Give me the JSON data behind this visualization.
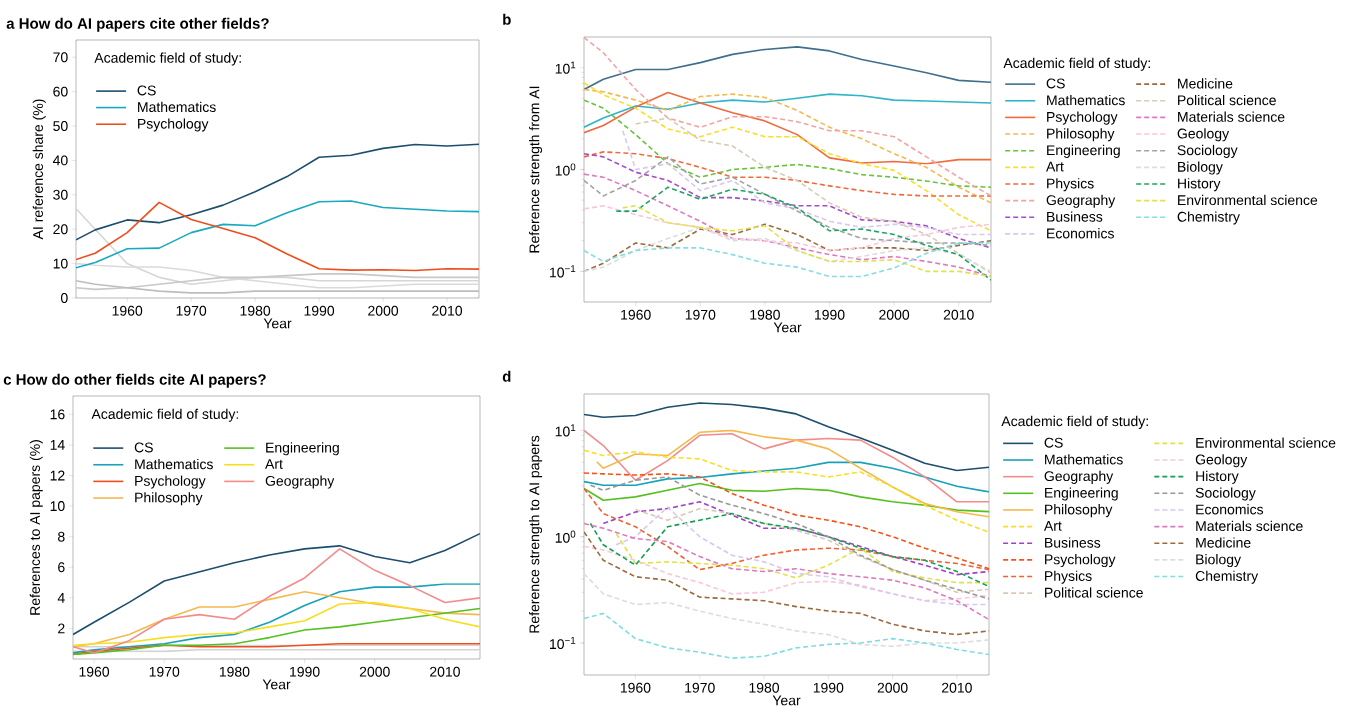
{
  "chart_data": [
    {
      "type": "line",
      "title": "a How do AI papers cite other fields?",
      "xlabel": "Year",
      "ylabel": "AI reference share (%)",
      "legend_title": "Academic field of study:",
      "legend": "top left",
      "x": [
        1952,
        1955,
        1960,
        1965,
        1970,
        1975,
        1980,
        1985,
        1990,
        1995,
        2000,
        2005,
        2010,
        2015
      ],
      "xlim": [
        1952,
        2015
      ],
      "xticks": [
        1960,
        1970,
        1980,
        1990,
        2000,
        2010
      ],
      "ylim": [
        0,
        75
      ],
      "yticks": [
        0,
        10,
        20,
        30,
        40,
        50,
        60,
        70
      ],
      "series": [
        {
          "color": "#d6d6d6",
          "line_style": "solid",
          "values": [
            26,
            20,
            10,
            6,
            4,
            5,
            6,
            6,
            5,
            5,
            5,
            5,
            5,
            5
          ]
        },
        {
          "color": "#dadada",
          "line_style": "solid",
          "values": [
            10,
            9.5,
            9,
            9,
            8,
            6,
            5,
            4,
            3,
            3,
            3.5,
            4,
            4,
            4
          ]
        },
        {
          "color": "#c8c8c8",
          "line_style": "solid",
          "values": [
            3,
            2.5,
            3,
            4,
            5,
            6,
            6,
            6.5,
            7,
            7,
            6.5,
            6,
            6,
            6
          ]
        },
        {
          "color": "#bdbdbd",
          "line_style": "solid",
          "values": [
            5,
            4,
            3,
            2,
            1.5,
            1.5,
            2,
            2,
            2,
            2,
            2,
            2,
            2,
            2
          ]
        },
        {
          "name": "CS",
          "color": "#1c4e6e",
          "line_style": "solid",
          "values": [
            16.9,
            19.8,
            22.7,
            21.9,
            24.2,
            27,
            30.9,
            35.3,
            40.9,
            41.5,
            43.5,
            44.6,
            44.2,
            44.7
          ]
        },
        {
          "name": "Mathematics",
          "color": "#17a9c0",
          "line_style": "solid",
          "values": [
            8.8,
            10.3,
            14.3,
            14.5,
            19,
            21.4,
            21,
            24.8,
            28,
            28.2,
            26.3,
            25.8,
            25.3,
            25.1
          ]
        },
        {
          "name": "Psychology",
          "color": "#ee4e1c",
          "line_style": "solid",
          "values": [
            11.2,
            13,
            19,
            27.8,
            22.8,
            20.2,
            17.5,
            12.8,
            8.5,
            8.1,
            8.2,
            8,
            8.5,
            8.4
          ]
        }
      ]
    },
    {
      "type": "line",
      "title": "b",
      "xlabel": "Year",
      "ylabel": "Reference strength from AI",
      "legend_title": "Academic field of study:",
      "legend": "right",
      "log": "y",
      "x": [
        1952,
        1955,
        1960,
        1965,
        1970,
        1975,
        1980,
        1985,
        1990,
        1995,
        2000,
        2005,
        2010,
        2015
      ],
      "xlim": [
        1952,
        2015
      ],
      "xticks": [
        1960,
        1970,
        1980,
        1990,
        2000,
        2010
      ],
      "ylim": [
        0.05,
        20
      ],
      "yticks": [
        {
          "value": 0.1,
          "label": "10$^{−1}$"
        },
        {
          "value": 1,
          "label": "10$^{0}$"
        },
        {
          "value": 10,
          "label": "10$^{1}$"
        }
      ],
      "series": [
        {
          "name": "CS",
          "color": "#3f6f8c",
          "line_style": "solid",
          "values": [
            6.1,
            7.7,
            9.6,
            9.6,
            11.2,
            13.5,
            15.1,
            16,
            14.6,
            12,
            10.4,
            8.9,
            7.5,
            7.2
          ]
        },
        {
          "name": "Mathematics",
          "color": "#2fb5c8",
          "line_style": "solid",
          "values": [
            2.6,
            3.2,
            4.2,
            3.9,
            4.5,
            4.8,
            4.6,
            5,
            5.5,
            5.3,
            4.8,
            4.7,
            4.6,
            4.5
          ]
        },
        {
          "name": "Psychology",
          "color": "#ef6a3c",
          "line_style": "solid",
          "values": [
            2.3,
            2.7,
            4.1,
            5.7,
            4.5,
            3.6,
            3,
            2.2,
            1.3,
            1.16,
            1.2,
            1.14,
            1.25,
            1.25
          ]
        },
        {
          "name": "Philosophy",
          "color": "#f5b94e",
          "line_style": "dashed",
          "values": [
            6.1,
            5.8,
            4.8,
            3.8,
            5.2,
            5.5,
            5.1,
            3.8,
            2.6,
            2,
            1.43,
            1.05,
            0.67,
            0.47
          ]
        },
        {
          "name": "Engineering",
          "color": "#66c43a",
          "line_style": "dashed",
          "values": [
            4.8,
            4,
            2.2,
            1.14,
            0.84,
            1,
            1.05,
            1.12,
            1.02,
            0.89,
            0.84,
            0.77,
            0.69,
            0.67
          ]
        },
        {
          "name": "Art",
          "color": "#f7df2a",
          "line_style": "dashed",
          "values": [
            7.1,
            5.4,
            4,
            2.5,
            2.1,
            2.6,
            2.1,
            2.1,
            1.43,
            1.14,
            0.98,
            0.62,
            0.36,
            0.25
          ]
        },
        {
          "name": "Physics",
          "color": "#f26a3b",
          "line_style": "dashed",
          "values": [
            1.33,
            1.49,
            1.43,
            1.28,
            1.05,
            0.84,
            0.84,
            0.78,
            0.69,
            0.62,
            0.57,
            0.55,
            0.55,
            0.55
          ]
        },
        {
          "name": "Geography",
          "color": "#f4a3a3",
          "line_style": "dashed",
          "values": [
            19.8,
            14,
            6.1,
            3.2,
            2.6,
            3.3,
            3.3,
            2.95,
            2.4,
            2.4,
            2.1,
            1.33,
            0.84,
            0.55
          ]
        },
        {
          "name": "Business",
          "color": "#a84bc9",
          "line_style": "dashed",
          "values": [
            1.43,
            1.33,
            0.94,
            0.78,
            0.53,
            0.53,
            0.49,
            0.44,
            0.44,
            0.32,
            0.31,
            0.28,
            0.21,
            0.17
          ]
        },
        {
          "name": "Economics",
          "color": "#d9c7f0",
          "line_style": "dashed",
          "x": [
            1958,
            1960,
            1965,
            1970,
            1975,
            1980,
            1985,
            1990,
            1995,
            2000,
            2005,
            2010,
            2015
          ],
          "values": [
            2.4,
            1.0,
            1.14,
            0.62,
            0.78,
            0.47,
            0.41,
            0.31,
            0.27,
            0.29,
            0.27,
            0.23,
            0.23
          ]
        },
        {
          "name": "Medicine",
          "color": "#9c6b3c",
          "line_style": "dashed",
          "values": [
            0.1,
            0.12,
            0.19,
            0.17,
            0.26,
            0.23,
            0.29,
            0.23,
            0.16,
            0.17,
            0.17,
            0.16,
            0.18,
            0.2
          ]
        },
        {
          "name": "Political science",
          "color": "#d8cbb6",
          "line_style": "dashed",
          "x": [
            1960,
            1965,
            1970,
            1975,
            1980,
            1985,
            1990,
            1995,
            2000,
            2005,
            2010,
            2015
          ],
          "values": [
            2.8,
            3.2,
            1.94,
            1.7,
            1.05,
            0.78,
            0.47,
            0.34,
            0.31,
            0.23,
            0.15,
            0.096
          ]
        },
        {
          "name": "Materials science",
          "color": "#e07ac0",
          "line_style": "dashed",
          "values": [
            0.9,
            0.84,
            0.62,
            0.44,
            0.31,
            0.21,
            0.2,
            0.17,
            0.146,
            0.13,
            0.14,
            0.125,
            0.11,
            0.089
          ]
        },
        {
          "name": "Geology",
          "color": "#f9c6dc",
          "line_style": "dashed",
          "values": [
            0.41,
            0.44,
            0.36,
            0.3,
            0.27,
            0.21,
            0.2,
            0.19,
            0.16,
            0.17,
            0.21,
            0.23,
            0.27,
            0.29
          ]
        },
        {
          "name": "Sociology",
          "color": "#a3a3a3",
          "line_style": "dashed",
          "values": [
            0.78,
            0.55,
            0.78,
            1.33,
            0.72,
            0.84,
            0.57,
            0.39,
            0.27,
            0.21,
            0.2,
            0.19,
            0.19,
            0.18
          ]
        },
        {
          "name": "Biology",
          "color": "#dddddd",
          "line_style": "dashed",
          "values": [
            0.1,
            0.11,
            0.16,
            0.21,
            0.27,
            0.2,
            0.21,
            0.16,
            0.125,
            0.14,
            0.16,
            0.17,
            0.146,
            0.1
          ]
        },
        {
          "name": "History",
          "color": "#1fa463",
          "line_style": "dashed",
          "x": [
            1957,
            1960,
            1965,
            1970,
            1975,
            1980,
            1985,
            1990,
            1995,
            2000,
            2005,
            2010,
            2015
          ],
          "values": [
            0.39,
            0.39,
            0.67,
            0.51,
            0.64,
            0.57,
            0.42,
            0.25,
            0.26,
            0.23,
            0.18,
            0.146,
            0.082
          ]
        },
        {
          "name": "Environmental science",
          "color": "#dfe34a",
          "line_style": "dashed",
          "x": [
            1958,
            1960,
            1965,
            1970,
            1975,
            1980,
            1985,
            1990,
            1995,
            2000,
            2005,
            2010,
            2015
          ],
          "values": [
            0.42,
            0.44,
            0.3,
            0.27,
            0.25,
            0.28,
            0.16,
            0.125,
            0.125,
            0.13,
            0.1,
            0.1,
            0.089
          ]
        },
        {
          "name": "Chemistry",
          "color": "#86dde2",
          "line_style": "dashed",
          "values": [
            0.16,
            0.125,
            0.16,
            0.17,
            0.17,
            0.146,
            0.12,
            0.11,
            0.089,
            0.089,
            0.108,
            0.15,
            0.19,
            0.19
          ]
        }
      ]
    },
    {
      "type": "line",
      "title": "c How do other fields cite AI papers?",
      "xlabel": "Year",
      "ylabel": "References to AI papers (%)",
      "legend_title": "Academic field of study:",
      "legend": "top left",
      "x": [
        1957,
        1960,
        1965,
        1970,
        1975,
        1980,
        1985,
        1990,
        1995,
        2000,
        2005,
        2010,
        2015
      ],
      "xlim": [
        1957,
        2015
      ],
      "xticks": [
        1960,
        1970,
        1980,
        1990,
        2000,
        2010
      ],
      "ylim": [
        0,
        17.2
      ],
      "yticks": [
        2,
        4,
        6,
        8,
        10,
        12,
        14,
        16
      ],
      "series": [
        {
          "color": "#d3d3d3",
          "line_style": "solid",
          "values": [
            0.8,
            0.8,
            0.8,
            0.9,
            0.9,
            0.9,
            0.9,
            0.9,
            0.9,
            0.9,
            0.9,
            0.9,
            0.9
          ]
        },
        {
          "color": "#d3d3d3",
          "line_style": "solid",
          "values": [
            0.5,
            0.5,
            0.5,
            0.5,
            0.6,
            0.6,
            0.6,
            0.6,
            0.6,
            0.6,
            0.6,
            0.6,
            0.6
          ]
        },
        {
          "name": "CS",
          "color": "#1c4e6e",
          "line_style": "solid",
          "values": [
            1.6,
            2.4,
            3.7,
            5.1,
            5.7,
            6.3,
            6.8,
            7.2,
            7.4,
            6.7,
            6.3,
            7.1,
            8.2
          ]
        },
        {
          "name": "Mathematics",
          "color": "#17a2b8",
          "line_style": "solid",
          "values": [
            0.4,
            0.6,
            0.8,
            1.0,
            1.4,
            1.6,
            2.4,
            3.5,
            4.4,
            4.7,
            4.7,
            4.9,
            4.9
          ]
        },
        {
          "name": "Psychology",
          "color": "#ee4e1c",
          "line_style": "solid",
          "values": [
            0.3,
            0.5,
            0.7,
            0.9,
            0.8,
            0.8,
            0.8,
            0.9,
            1.0,
            1.0,
            1.0,
            1.0,
            1.0
          ]
        },
        {
          "name": "Philosophy",
          "color": "#f5b94e",
          "line_style": "solid",
          "values": [
            0.8,
            1.0,
            1.6,
            2.6,
            3.4,
            3.4,
            3.9,
            4.4,
            4.0,
            3.6,
            3.3,
            3.0,
            2.9
          ]
        },
        {
          "name": "Engineering",
          "color": "#55c01e",
          "line_style": "solid",
          "values": [
            0.3,
            0.4,
            0.6,
            0.9,
            0.9,
            1.0,
            1.4,
            1.9,
            2.1,
            2.4,
            2.7,
            3.0,
            3.3
          ]
        },
        {
          "name": "Art",
          "color": "#f7df20",
          "line_style": "solid",
          "values": [
            0.9,
            1.0,
            1.1,
            1.4,
            1.6,
            1.7,
            2.1,
            2.5,
            3.6,
            3.7,
            3.3,
            2.6,
            2.1
          ]
        },
        {
          "name": "Geography",
          "color": "#f38b8b",
          "line_style": "solid",
          "values": [
            0.8,
            0.4,
            1.2,
            2.6,
            2.9,
            2.6,
            4.1,
            5.3,
            7.2,
            5.8,
            4.8,
            3.7,
            4.0
          ]
        }
      ]
    },
    {
      "type": "line",
      "title": "d",
      "xlabel": "Year",
      "ylabel": "Reference strength to AI papers",
      "legend_title": "Academic field of study:",
      "legend": "right",
      "log": "y",
      "x": [
        1952,
        1955,
        1960,
        1965,
        1970,
        1975,
        1980,
        1985,
        1990,
        1995,
        2000,
        2005,
        2010,
        2015
      ],
      "xlim": [
        1952,
        2015
      ],
      "xticks": [
        1960,
        1970,
        1980,
        1990,
        2000,
        2010
      ],
      "ylim": [
        0.05,
        22
      ],
      "yticks": [
        {
          "value": 0.1,
          "label": "10$^{−1}$"
        },
        {
          "value": 1,
          "label": "10$^{0}$"
        },
        {
          "value": 10,
          "label": "10$^{1}$"
        }
      ],
      "series": [
        {
          "name": "CS",
          "color": "#1c4e6e",
          "line_style": "solid",
          "values": [
            14.1,
            13.3,
            13.8,
            16.5,
            18.1,
            17.5,
            16.2,
            14.3,
            10.8,
            8.5,
            6.5,
            4.9,
            4.2,
            4.5
          ]
        },
        {
          "name": "Mathematics",
          "color": "#17a2b8",
          "line_style": "solid",
          "values": [
            3.3,
            3.05,
            3.05,
            3.5,
            3.6,
            3.9,
            4.15,
            4.4,
            5.0,
            5.0,
            4.4,
            3.65,
            2.98,
            2.64
          ]
        },
        {
          "name": "Geography",
          "color": "#f38b8b",
          "line_style": "solid",
          "values": [
            10,
            7.2,
            3.4,
            5.2,
            9,
            9.3,
            6.7,
            8.1,
            8.4,
            8.1,
            5.6,
            3.65,
            2.13,
            2.13
          ]
        },
        {
          "name": "Engineering",
          "color": "#55c01e",
          "line_style": "solid",
          "values": [
            2.84,
            2.2,
            2.37,
            2.73,
            3.16,
            2.73,
            2.68,
            2.84,
            2.73,
            2.37,
            2.13,
            1.98,
            1.78,
            1.72
          ]
        },
        {
          "name": "Philosophy",
          "color": "#f5b94e",
          "line_style": "solid",
          "x": [
            1954,
            1955,
            1960,
            1965,
            1970,
            1975,
            1980,
            1985,
            1990,
            1995,
            2000,
            2005,
            2010,
            2015
          ],
          "values": [
            5.05,
            4.4,
            6.0,
            5.8,
            9.6,
            10,
            8.7,
            8.1,
            6.7,
            4.4,
            2.94,
            2.05,
            1.72,
            1.54
          ]
        },
        {
          "name": "Art",
          "color": "#f7e020",
          "line_style": "dashed",
          "values": [
            6.5,
            5.8,
            6.3,
            5.6,
            5.4,
            4.2,
            4.07,
            4.07,
            3.65,
            4.07,
            2.94,
            1.98,
            1.43,
            1.1
          ]
        },
        {
          "name": "Business",
          "color": "#a040c8",
          "line_style": "dashed",
          "x": [
            1955,
            1960,
            1965,
            1970,
            1975,
            1980,
            1985,
            1990,
            1995,
            2000,
            2005,
            2010,
            2015
          ],
          "values": [
            1.33,
            1.71,
            1.84,
            2.13,
            1.6,
            1.2,
            1.2,
            1.0,
            0.81,
            0.65,
            0.54,
            0.44,
            0.47
          ]
        },
        {
          "name": "Psychology",
          "color": "#f5531a",
          "line_style": "dashed",
          "values": [
            3.98,
            3.9,
            3.8,
            3.9,
            3.65,
            2.55,
            1.98,
            1.6,
            1.43,
            1.24,
            1.0,
            0.78,
            0.63,
            0.5
          ]
        },
        {
          "name": "Physics",
          "color": "#f06030",
          "line_style": "dashed",
          "values": [
            2.84,
            1.65,
            1.24,
            0.81,
            0.49,
            0.56,
            0.67,
            0.75,
            0.78,
            0.75,
            0.65,
            0.6,
            0.56,
            0.49
          ]
        },
        {
          "name": "Political science",
          "color": "#d8cbb6",
          "line_style": "dashed",
          "x": [
            1960,
            1965,
            1970,
            1975,
            1980,
            1985,
            1990,
            1995,
            2000,
            2005,
            2010,
            2015
          ],
          "values": [
            1.8,
            1.43,
            1.84,
            1.65,
            1.33,
            1.15,
            0.93,
            0.65,
            0.49,
            0.39,
            0.3,
            0.32
          ]
        },
        {
          "name": "Environmental science",
          "color": "#dfe34a",
          "line_style": "dashed",
          "x": [
            1957,
            1960,
            1965,
            1970,
            1975,
            1980,
            1985,
            1990,
            1995,
            2000,
            2005,
            2010,
            2015
          ],
          "values": [
            1.07,
            0.56,
            0.58,
            0.56,
            0.54,
            0.5,
            0.41,
            0.54,
            0.78,
            0.47,
            0.41,
            0.37,
            0.37
          ]
        },
        {
          "name": "Geology",
          "color": "#f9c6dc",
          "line_style": "dashed",
          "values": [
            0.81,
            0.75,
            0.6,
            0.45,
            0.37,
            0.29,
            0.3,
            0.37,
            0.38,
            0.35,
            0.29,
            0.25,
            0.26,
            0.28
          ]
        },
        {
          "name": "History",
          "color": "#15a050",
          "line_style": "dashed",
          "x": [
            1953,
            1955,
            1960,
            1965,
            1970,
            1975,
            1980,
            1985,
            1990,
            1995,
            2000,
            2005,
            2010,
            2015
          ],
          "values": [
            1.33,
            0.84,
            0.54,
            1.24,
            1.43,
            1.65,
            1.33,
            1.2,
            1.0,
            0.78,
            0.65,
            0.6,
            0.47,
            0.34
          ]
        },
        {
          "name": "Sociology",
          "color": "#999999",
          "line_style": "dashed",
          "x": [
            1953,
            1955,
            1960,
            1965,
            1970,
            1975,
            1980,
            1985,
            1990,
            1995,
            2000,
            2005,
            2010,
            2015
          ],
          "values": [
            3.05,
            2.73,
            3.4,
            3.65,
            2.46,
            1.98,
            1.65,
            1.33,
            1.0,
            0.67,
            0.49,
            0.39,
            0.32,
            0.26
          ]
        },
        {
          "name": "Economics",
          "color": "#d9c7f0",
          "line_style": "dashed",
          "x": [
            1957,
            1960,
            1965,
            1970,
            1975,
            1980,
            1985,
            1990,
            1995,
            2000,
            2005,
            2010,
            2015
          ],
          "values": [
            0.84,
            1.0,
            1.9,
            1.0,
            0.67,
            0.58,
            0.45,
            0.42,
            0.34,
            0.29,
            0.25,
            0.23,
            0.23
          ]
        },
        {
          "name": "Materials science",
          "color": "#e07ac0",
          "line_style": "dashed",
          "values": [
            1.33,
            1.2,
            0.96,
            0.9,
            0.65,
            0.5,
            0.47,
            0.5,
            0.45,
            0.42,
            0.39,
            0.33,
            0.25,
            0.166
          ]
        },
        {
          "name": "Medicine",
          "color": "#9c6b3c",
          "line_style": "dashed",
          "values": [
            1.11,
            0.6,
            0.42,
            0.39,
            0.27,
            0.26,
            0.25,
            0.22,
            0.2,
            0.19,
            0.15,
            0.13,
            0.12,
            0.13
          ]
        },
        {
          "name": "Biology",
          "color": "#dddddd",
          "line_style": "dashed",
          "values": [
            0.45,
            0.29,
            0.23,
            0.24,
            0.2,
            0.17,
            0.15,
            0.13,
            0.12,
            0.097,
            0.093,
            0.1,
            0.1,
            0.107
          ]
        },
        {
          "name": "Chemistry",
          "color": "#7edde2",
          "line_style": "dashed",
          "values": [
            0.17,
            0.19,
            0.11,
            0.09,
            0.082,
            0.072,
            0.075,
            0.09,
            0.097,
            0.1,
            0.11,
            0.1,
            0.087,
            0.078
          ]
        }
      ]
    }
  ]
}
